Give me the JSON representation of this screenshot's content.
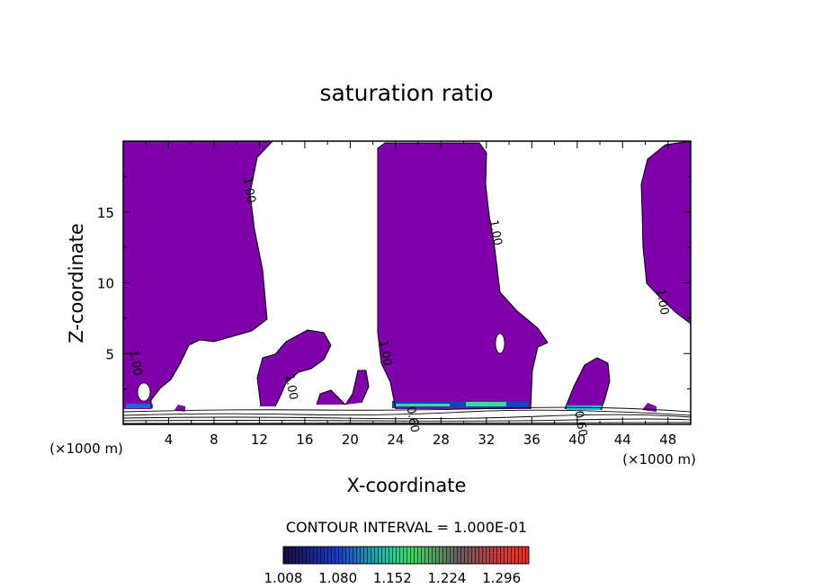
{
  "chart_data": {
    "type": "contour",
    "title": "saturation ratio",
    "xlabel": "X-coordinate",
    "ylabel": "Z-coordinate",
    "x_unit": "(×1000 m)",
    "x_unit_right": "(×1000 m)",
    "xlim": [
      0,
      50
    ],
    "ylim": [
      0,
      20
    ],
    "x_ticks": [
      4,
      8,
      12,
      16,
      20,
      24,
      28,
      32,
      36,
      40,
      44,
      48
    ],
    "y_ticks": [
      5,
      10,
      15
    ],
    "contour_interval_text": "CONTOUR INTERVAL = 1.000E-01",
    "fill_color": "#7d00a8",
    "contour_labels": [
      {
        "text": "1.00",
        "x": 10.8,
        "z": 16.5
      },
      {
        "text": "1.00",
        "x": 32.5,
        "z": 13.5
      },
      {
        "text": "1.00",
        "x": 47.2,
        "z": 8.6
      },
      {
        "text": "1.00",
        "x": 22.8,
        "z": 5.0
      },
      {
        "text": "1.00",
        "x": 0.8,
        "z": 4.3
      },
      {
        "text": "1.00",
        "x": 14.5,
        "z": 2.6
      },
      {
        "text": "0.60",
        "x": 25.2,
        "z": 0.3
      },
      {
        "text": "0.60",
        "x": 40.0,
        "z": 0.0
      }
    ],
    "colorbar": {
      "min": 1.008,
      "max": 1.332,
      "tick_labels": [
        "1.008",
        "1.080",
        "1.152",
        "1.224",
        "1.296"
      ]
    }
  }
}
